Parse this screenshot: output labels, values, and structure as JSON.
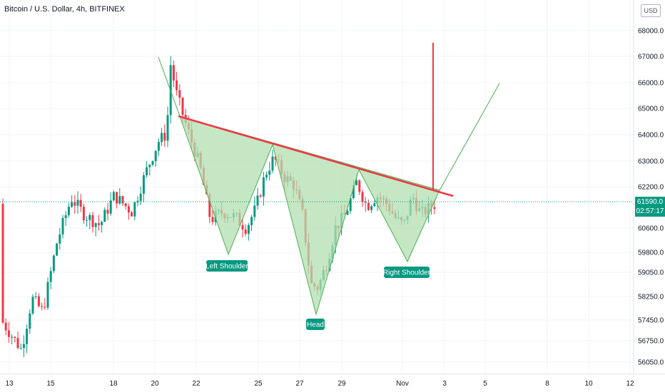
{
  "title": "Bitcoin / U.S. Dollar, 4h, BITFINEX",
  "currency": "USD",
  "current_price": "61590.0",
  "countdown": "02:57:17",
  "colors": {
    "up": "#089981",
    "down": "#f23645",
    "pattern_fill": "#b2dfb0",
    "pattern_line": "#4caf50",
    "neckline": "#f23645",
    "grid": "#f0f3fa"
  },
  "chart_data": {
    "type": "candlestick",
    "y_axis_ticks": [
      "68000.0",
      "67000.0",
      "66000.0",
      "65000.0",
      "64000.0",
      "63000.0",
      "62200.0",
      "60600.0",
      "59800.0",
      "59050.0",
      "58250.0",
      "57450.0",
      "56750.0",
      "56050.0"
    ],
    "x_axis_ticks": [
      "13",
      "15",
      "18",
      "20",
      "22",
      "25",
      "27",
      "29",
      "Nov",
      "3",
      "5",
      "8",
      "10",
      "12"
    ],
    "annotations": [
      "Left Shoulder",
      "Head",
      "Right Shoulder"
    ],
    "pattern": "inverse head and shoulders",
    "neckline_price_range": [
      64800,
      61700
    ],
    "target_price_approx": 67500,
    "ylim": [
      55800,
      68600
    ]
  }
}
